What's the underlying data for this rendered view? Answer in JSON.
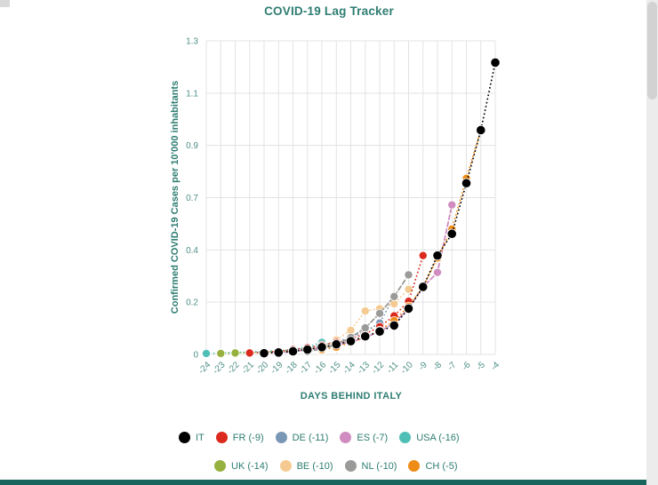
{
  "page": {
    "title": "COVID-19 Lag Tracker"
  },
  "colors": {
    "title_text": "#2e7d72",
    "tick_text": "#4f9188",
    "grid": "#e3e3e3",
    "bottom_bar": "#17655c",
    "scrollbar_track": "#ececec",
    "scrollbar_thumb": "#d2d2d2"
  },
  "chart_data": {
    "type": "scatter",
    "title": "COVID-19 Lag Tracker",
    "xlabel": "DAYS BEHIND ITALY",
    "ylabel": "Confirmed COVID-19 Cases per 10'000 inhabitants",
    "xlim": [
      -24,
      -4
    ],
    "ylim": [
      0,
      1.3
    ],
    "grid": true,
    "legend_position": "bottom",
    "xticks": [
      -24,
      -23,
      -22,
      -21,
      -20,
      -19,
      -18,
      -17,
      -16,
      -15,
      -14,
      -13,
      -12,
      -11,
      -10,
      -9,
      -8,
      -7,
      -6,
      -5,
      -4
    ],
    "xtick_labels": [
      "-24",
      "-23",
      "-22",
      "-21",
      "-20",
      "-19",
      "-18",
      "-17",
      "-16",
      "-15",
      "-14",
      "-13",
      "-12",
      "-11",
      "-10",
      "-9",
      "-8",
      "-7",
      "-6",
      "-5",
      "-4"
    ],
    "ytick_values": [
      0,
      0.2167,
      0.4333,
      0.65,
      0.8667,
      1.0833,
      1.3
    ],
    "ytick_labels": [
      "0",
      "0.2",
      "0.4",
      "0.7",
      "0.9",
      "1.1",
      "1.3"
    ],
    "series": [
      {
        "name": "USA",
        "label": "USA (-16)",
        "color": "#4fbfb6",
        "line_style": "dotted",
        "x": [
          -24,
          -23,
          -22,
          -21,
          -20,
          -19,
          -18,
          -17,
          -16
        ],
        "y": [
          0.004,
          0.006,
          0.008,
          0.01,
          0.013,
          0.016,
          0.02,
          0.03,
          0.05
        ]
      },
      {
        "name": "UK",
        "label": "UK (-14)",
        "color": "#96b13d",
        "line_style": "dotted",
        "x": [
          -23,
          -22,
          -21,
          -20,
          -19,
          -18,
          -17,
          -16,
          -15,
          -14
        ],
        "y": [
          0.004,
          0.006,
          0.008,
          0.01,
          0.013,
          0.017,
          0.022,
          0.03,
          0.042,
          0.06
        ]
      },
      {
        "name": "DE",
        "label": "DE (-11)",
        "color": "#7997b5",
        "line_style": "dotted",
        "x": [
          -20,
          -19,
          -18,
          -17,
          -16,
          -15,
          -14,
          -13,
          -12,
          -11
        ],
        "y": [
          0.006,
          0.01,
          0.016,
          0.025,
          0.038,
          0.052,
          0.07,
          0.095,
          0.13,
          0.24
        ]
      },
      {
        "name": "BE",
        "label": "BE (-10)",
        "color": "#f4ca92",
        "line_style": "dotted",
        "x": [
          -18,
          -17,
          -16,
          -15,
          -14,
          -13,
          -12,
          -11,
          -10
        ],
        "y": [
          0.01,
          0.02,
          0.035,
          0.06,
          0.1,
          0.18,
          0.19,
          0.21,
          0.27
        ]
      },
      {
        "name": "FR",
        "label": "FR (-9)",
        "color": "#db2a1d",
        "line_style": "dotted",
        "x": [
          -21,
          -20,
          -19,
          -18,
          -17,
          -16,
          -15,
          -14,
          -13,
          -12,
          -11,
          -10,
          -9
        ],
        "y": [
          0.006,
          0.009,
          0.013,
          0.02,
          0.028,
          0.038,
          0.05,
          0.065,
          0.085,
          0.115,
          0.16,
          0.22,
          0.41
        ]
      },
      {
        "name": "ES",
        "label": "ES (-7)",
        "color": "#d08cc0",
        "line_style": "dashed",
        "x": [
          -19,
          -18,
          -17,
          -16,
          -15,
          -14,
          -13,
          -12,
          -11,
          -10,
          -9,
          -8,
          -7
        ],
        "y": [
          0.006,
          0.012,
          0.02,
          0.028,
          0.038,
          0.052,
          0.07,
          0.095,
          0.13,
          0.19,
          0.28,
          0.34,
          0.62
        ]
      },
      {
        "name": "NL",
        "label": "NL (-10)",
        "color": "#9a9a98",
        "line_style": "dashed",
        "x": [
          -17,
          -16,
          -15,
          -14,
          -13,
          -12,
          -11,
          -10
        ],
        "y": [
          0.012,
          0.022,
          0.04,
          0.07,
          0.11,
          0.17,
          0.24,
          0.33
        ]
      },
      {
        "name": "CH",
        "label": "CH (-5)",
        "color": "#ef8b17",
        "line_style": "dotted",
        "x": [
          -16,
          -15,
          -14,
          -13,
          -12,
          -11,
          -10,
          -9,
          -8,
          -7,
          -6,
          -5
        ],
        "y": [
          0.02,
          0.03,
          0.05,
          0.07,
          0.1,
          0.14,
          0.2,
          0.28,
          0.4,
          0.52,
          0.73,
          0.93
        ]
      },
      {
        "name": "IT",
        "label": "IT",
        "color": "#000000",
        "line_style": "dotted",
        "x": [
          -20,
          -19,
          -18,
          -17,
          -16,
          -15,
          -14,
          -13,
          -12,
          -11,
          -10,
          -9,
          -8,
          -7,
          -6,
          -5,
          -4
        ],
        "y": [
          0.005,
          0.008,
          0.013,
          0.02,
          0.03,
          0.042,
          0.055,
          0.075,
          0.095,
          0.12,
          0.19,
          0.28,
          0.41,
          0.5,
          0.71,
          0.93,
          1.21
        ]
      }
    ],
    "legend_rows": [
      [
        "IT",
        "FR",
        "DE",
        "ES",
        "USA"
      ],
      [
        "UK",
        "BE",
        "NL",
        "CH"
      ]
    ]
  }
}
